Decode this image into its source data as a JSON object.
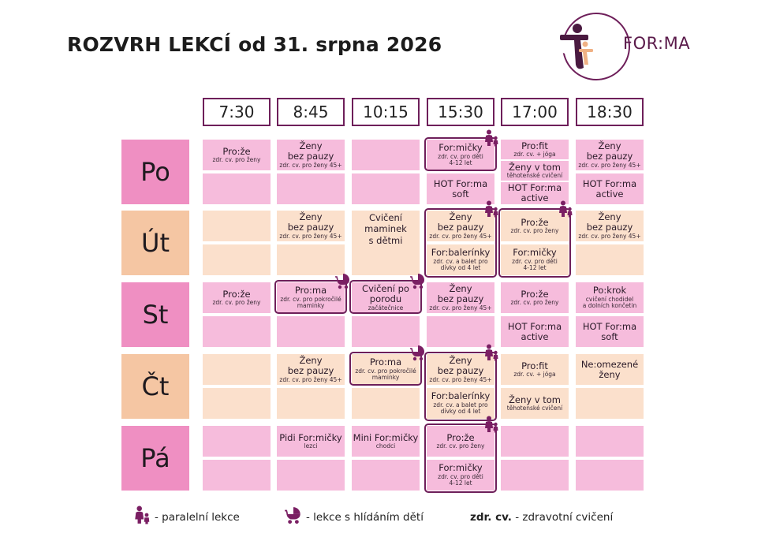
{
  "title": "ROZVRH LEKCÍ od 31. srpna 2026",
  "logo_text": "FOR:MA",
  "colors": {
    "accent": "#6e1f5a",
    "pink": "#f6bcdc",
    "day_pink": "#ef8fc2",
    "peach": "#fbe0cc",
    "day_peach": "#f5c6a3"
  },
  "times": [
    "7:30",
    "8:45",
    "10:15",
    "15:30",
    "17:00",
    "18:30"
  ],
  "days": [
    "Po",
    "Út",
    "St",
    "Čt",
    "Pá"
  ],
  "schedule": {
    "po": {
      "c730": {
        "n": "Pro:že",
        "s": "zdr. cv. pro ženy"
      },
      "c845": {
        "n": "Ženy\nbez pauzy",
        "s": "zdr. cv. pro ženy 45+"
      },
      "c1530a": {
        "n": "For:mičky",
        "s": "zdr. cv. pro děti\n4-12 let"
      },
      "c1530b": {
        "n": "HOT For:ma\nsoft"
      },
      "c1700a": {
        "n": "Pro:fit",
        "s": "zdr. cv. + jóga"
      },
      "c1700b": {
        "n": "Ženy v tom",
        "s": "těhotenské cvičení"
      },
      "c1700c": {
        "n": "HOT For:ma\nactive"
      },
      "c1830a": {
        "n": "Ženy\nbez pauzy",
        "s": "zdr. cv. pro ženy 45+"
      },
      "c1830b": {
        "n": "HOT For:ma\nactive"
      }
    },
    "ut": {
      "c845": {
        "n": "Ženy\nbez pauzy",
        "s": "zdr. cv. pro ženy 45+"
      },
      "c1015": {
        "n": "Cvičení\nmaminek\ns dětmi"
      },
      "c1530a": {
        "n": "Ženy\nbez pauzy",
        "s": "zdr. cv. pro ženy 45+"
      },
      "c1530b": {
        "n": "For:balerínky",
        "s": "zdr. cv. a balet pro\ndívky od 4 let"
      },
      "c1700a": {
        "n": "Pro:že",
        "s": "zdr. cv. pro ženy"
      },
      "c1700b": {
        "n": "For:mičky",
        "s": "zdr. cv. pro děti\n4-12 let"
      },
      "c1830a": {
        "n": "Ženy\nbez pauzy",
        "s": "zdr. cv. pro ženy 45+"
      }
    },
    "st": {
      "c730": {
        "n": "Pro:že",
        "s": "zdr. cv. pro ženy"
      },
      "c845": {
        "n": "Pro:ma",
        "s": "zdr. cv. pro pokročilé\nmaminky"
      },
      "c1015": {
        "n": "Cvičení po\nporodu",
        "s": "začátečnice"
      },
      "c1530": {
        "n": "Ženy\nbez pauzy",
        "s": "zdr. cv. pro ženy 45+"
      },
      "c1700a": {
        "n": "Pro:že",
        "s": "zdr. cv. pro ženy"
      },
      "c1700b": {
        "n": "HOT For:ma\nactive"
      },
      "c1830a": {
        "n": "Po:krok",
        "s": "cvičení chodidel\na dolních končetin"
      },
      "c1830b": {
        "n": "HOT For:ma\nsoft"
      }
    },
    "ct": {
      "c845": {
        "n": "Ženy\nbez pauzy",
        "s": "zdr. cv. pro ženy 45+"
      },
      "c1015": {
        "n": "Pro:ma",
        "s": "zdr. cv. pro pokročilé\nmaminky"
      },
      "c1530a": {
        "n": "Ženy\nbez pauzy",
        "s": "zdr. cv. pro ženy 45+"
      },
      "c1530b": {
        "n": "For:balerínky",
        "s": "zdr. cv. a balet pro\ndívky od 4 let"
      },
      "c1700a": {
        "n": "Pro:fit",
        "s": "zdr. cv. + jóga"
      },
      "c1700b": {
        "n": "Ženy v tom",
        "s": "těhotenské cvičení"
      },
      "c1830a": {
        "n": "Ne:omezené\nženy"
      }
    },
    "pa": {
      "c845": {
        "n": "Pidi For:mičky",
        "s": "lezci"
      },
      "c1015": {
        "n": "Mini For:mičky",
        "s": "chodci"
      },
      "c1530a": {
        "n": "Pro:že",
        "s": "zdr. cv. pro ženy"
      },
      "c1530b": {
        "n": "For:mičky",
        "s": "zdr. cv. pro děti\n4-12 let"
      }
    }
  },
  "legend": {
    "parallel": "- paralelní lekce",
    "babysit": "- lekce s hlídáním dětí",
    "abbr": "zdr. cv.",
    "abbr_text": "- zdravotní cvičení"
  },
  "icons": {
    "parallel": "mother-child-icon",
    "babysit": "stroller-icon"
  }
}
